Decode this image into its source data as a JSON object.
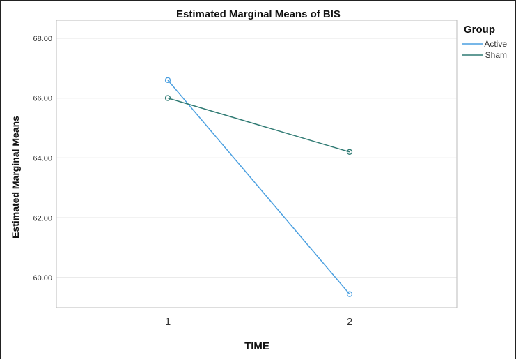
{
  "chart_data": {
    "type": "line",
    "title": "Estimated Marginal Means of BIS",
    "xlabel": "TIME",
    "ylabel": "Estimated Marginal Means",
    "categories": [
      "1",
      "2"
    ],
    "ylim": [
      59.0,
      68.6
    ],
    "yticks": [
      60.0,
      62.0,
      64.0,
      66.0,
      68.0
    ],
    "ytick_labels": [
      "60.00",
      "62.00",
      "64.00",
      "66.00",
      "68.00"
    ],
    "grid": "horizontal",
    "legend": {
      "title": "Group",
      "placement": "top-right"
    },
    "series": [
      {
        "name": "Active",
        "color": "#4a9fe0",
        "values": [
          66.6,
          59.45
        ]
      },
      {
        "name": "Sham",
        "color": "#2f7a73",
        "values": [
          66.0,
          64.2
        ]
      }
    ]
  }
}
